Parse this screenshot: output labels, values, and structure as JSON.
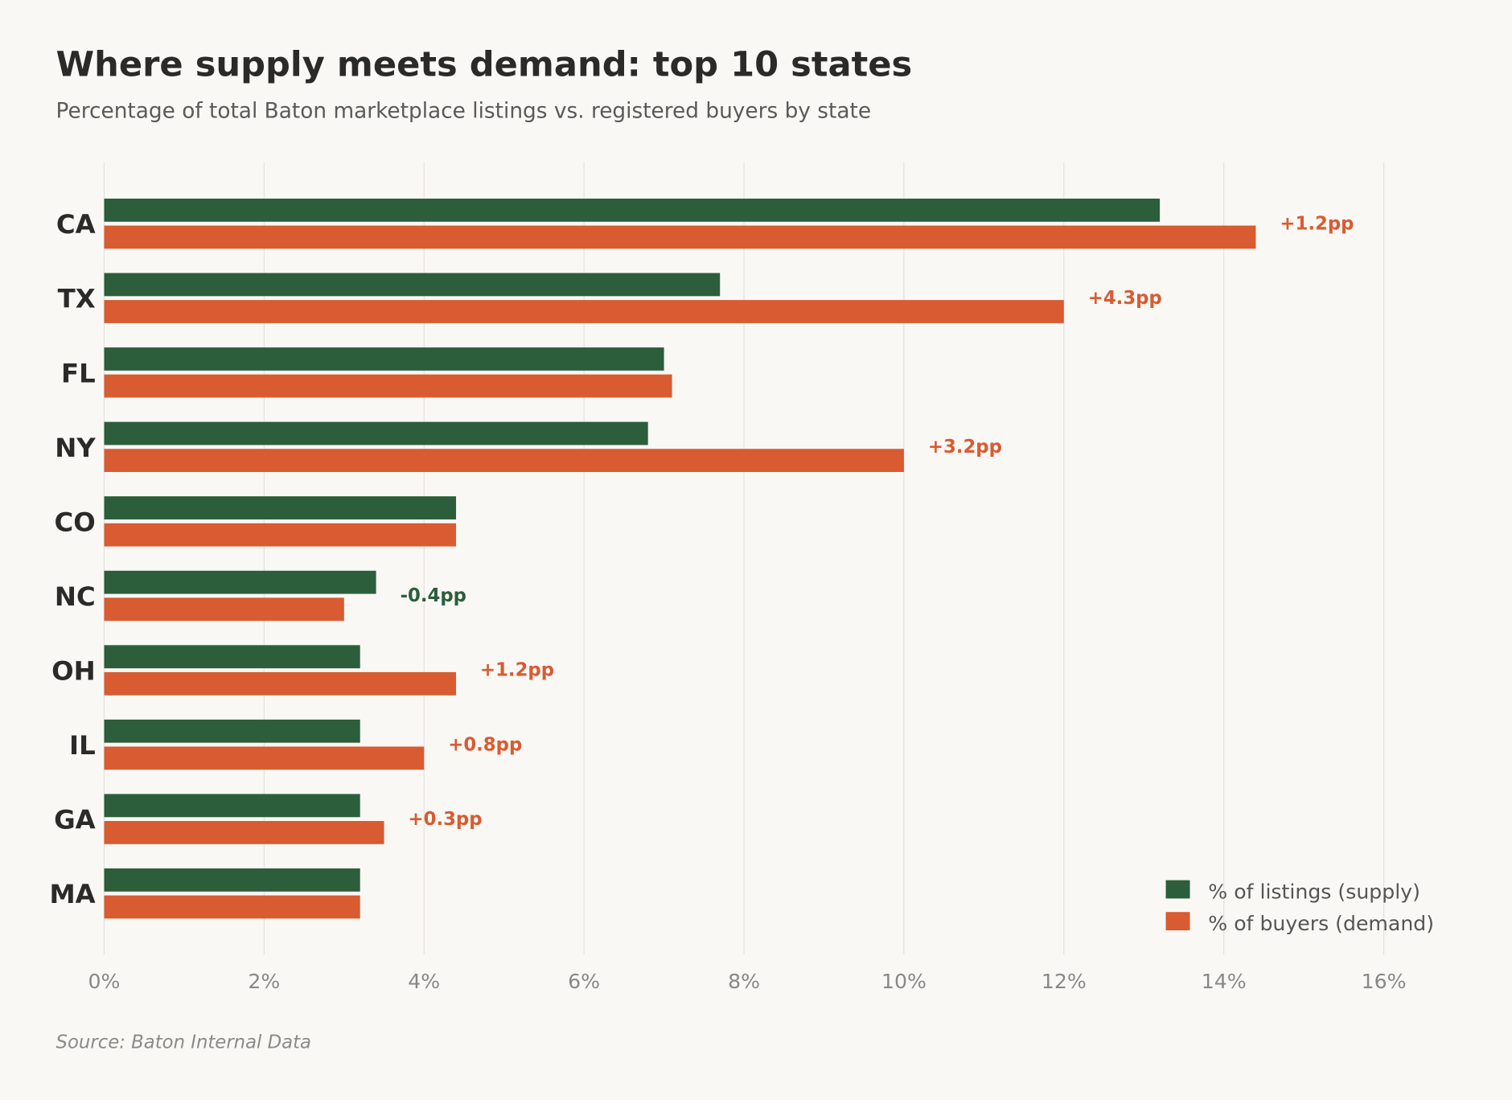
{
  "chart_data": {
    "type": "bar",
    "orientation": "horizontal",
    "title": "Where supply meets demand: top 10 states",
    "subtitle": "Percentage of total Baton marketplace listings vs. registered buyers by state",
    "source": "Source: Baton Internal Data",
    "categories": [
      "CA",
      "TX",
      "FL",
      "NY",
      "CO",
      "NC",
      "OH",
      "IL",
      "GA",
      "MA"
    ],
    "series": [
      {
        "name": "% of listings (supply)",
        "color": "#2c5e3b",
        "values": [
          13.2,
          7.7,
          7.0,
          6.8,
          4.4,
          3.4,
          3.2,
          3.2,
          3.2,
          3.2
        ]
      },
      {
        "name": "% of buyers (demand)",
        "color": "#d95b31",
        "values": [
          14.4,
          12.0,
          7.1,
          10.0,
          4.4,
          3.0,
          4.4,
          4.0,
          3.5,
          3.2
        ]
      }
    ],
    "annotations": [
      "+1.2pp",
      "+4.3pp",
      "",
      "+3.2pp",
      "",
      "-0.4pp",
      "+1.2pp",
      "+0.8pp",
      "+0.3pp",
      ""
    ],
    "xlim": [
      0,
      16.5
    ],
    "xticks": [
      0,
      2,
      4,
      6,
      8,
      10,
      12,
      14,
      16
    ],
    "xtick_labels": [
      "0%",
      "2%",
      "4%",
      "6%",
      "8%",
      "10%",
      "12%",
      "14%",
      "16%"
    ],
    "grid": "vertical",
    "legend_position": "bottom-right",
    "colors": {
      "positive": "#d95b31",
      "negative": "#2c5e3b",
      "background": "#f9f8f5"
    }
  }
}
